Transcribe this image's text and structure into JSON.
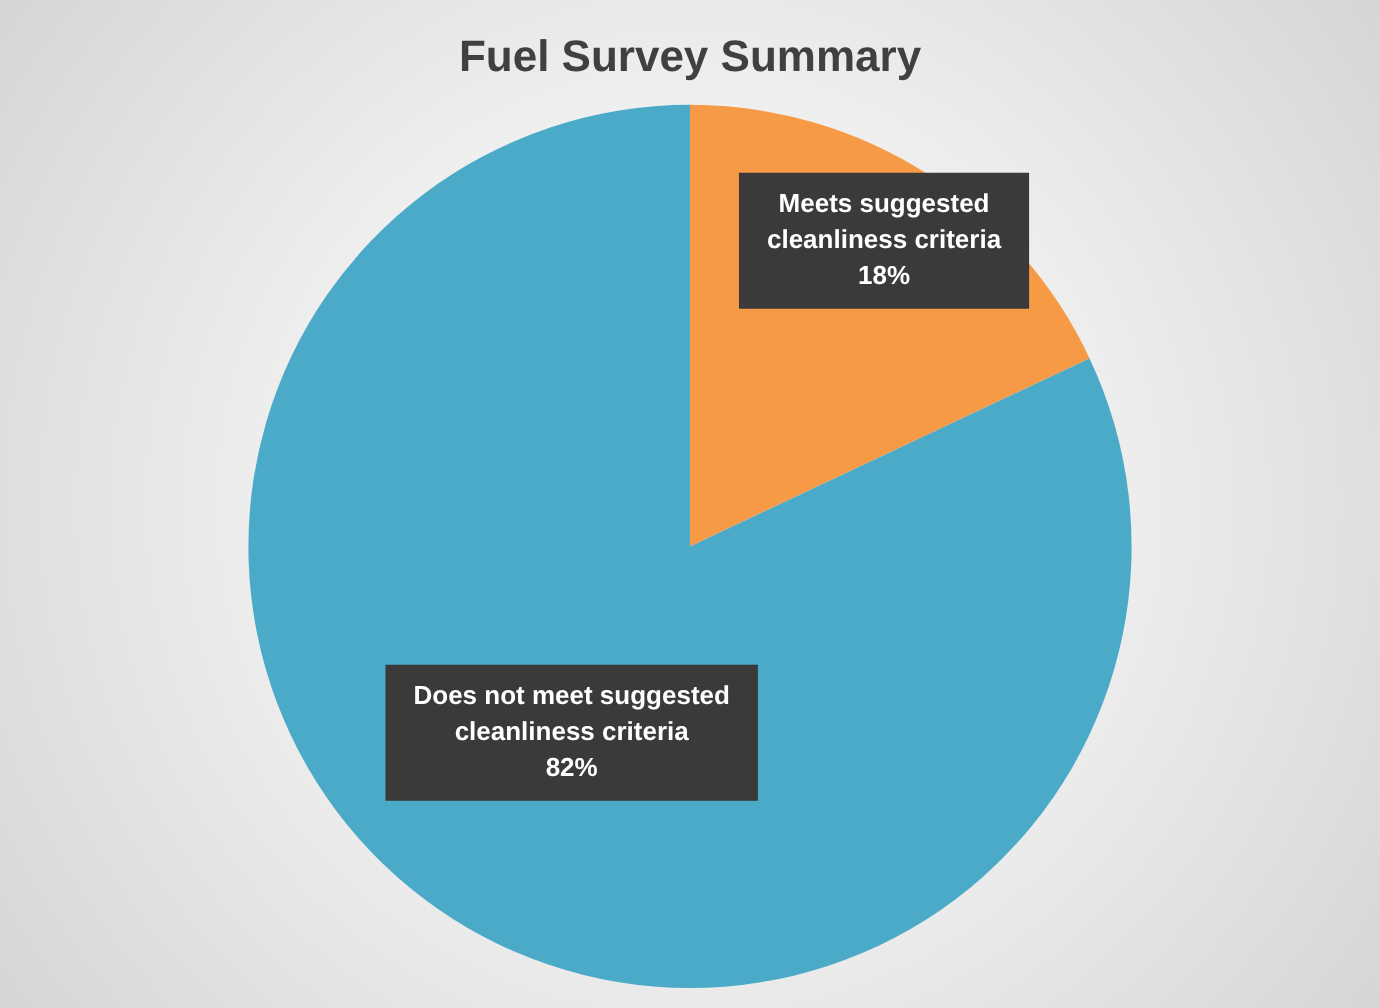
{
  "chart_data": {
    "type": "pie",
    "title": "Fuel Survey Summary",
    "categories": [
      "Meets suggested cleanliness criteria",
      "Does not meet suggested cleanliness criteria"
    ],
    "values": [
      18,
      82
    ],
    "colors": [
      "#f79a45",
      "#4aaac8"
    ],
    "value_labels": [
      "18%",
      "82%"
    ],
    "legend": false
  }
}
